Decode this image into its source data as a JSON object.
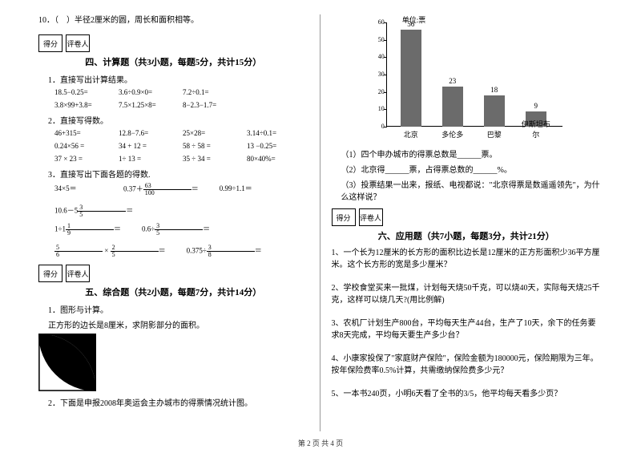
{
  "left": {
    "q10": "10．（　）半径2厘米的圆，周长和面积相等。",
    "score_labels": [
      "得分",
      "评卷人"
    ],
    "sec4_title": "四、计算题（共3小题，每题5分，共计15分）",
    "q4_1": "1．直接写出计算结果。",
    "r4_1a": [
      "18.5−0.25=",
      "3.6÷0.9×0=",
      "7.2÷0.1="
    ],
    "r4_1b": [
      "3.8×99+3.8=",
      "7.5×1.25×8=",
      "8−2.3−1.7="
    ],
    "q4_2": "2．直接写得数。",
    "r4_2a": [
      "46+315=",
      "12.8−7.6=",
      "25×28=",
      "3.14÷0.1="
    ],
    "r4_2b": [
      "0.24×56 =",
      "34 + 12 =",
      "58 ÷ 58 =",
      "13 −0.25="
    ],
    "r4_2c": [
      "37 × 23 =",
      "1÷ 13 =",
      "35 ÷ 34 =",
      "80×40%="
    ],
    "q4_3": "3．直接写出下面各题的得数.",
    "r4_3a_1": "34×5＝",
    "r4_3a_2a": "0.37＋",
    "r4_3a_2b": "＝",
    "r4_3a_3": "0.99÷1.1＝",
    "r4_3a_4a": "10.6－5",
    "r4_3a_4b": "＝",
    "r4_3b_1a": "1÷1",
    "r4_3b_1b": "＝",
    "r4_3b_2a": "0.6÷",
    "r4_3b_2b": "＝",
    "r4_3b_3b": "＝",
    "r4_3b_4a": "0.375÷",
    "r4_3b_4b": "＝",
    "sec5_title": "五、综合题（共2小题，每题7分，共计14分）",
    "q5_1a": "1．图形与计算。",
    "q5_1b": "正方形的边长是8厘米，求阴影部分的面积。",
    "q5_2": "2．下面是申报2008年奥运会主办城市的得票情况统计图。"
  },
  "right": {
    "chart": {
      "unit": "单位:票",
      "ymax": 60,
      "ystep": 10,
      "categories": [
        "北京",
        "多伦多",
        "巴黎",
        "伊斯坦布尔"
      ],
      "values": [
        56,
        23,
        18,
        9
      ],
      "bar_color": "#6b6b6b",
      "axis_color": "#000000"
    },
    "q_c1": "（1）四个申办城市的得票总数是______票。",
    "q_c2": "（2）北京得______票，占得票总数的______%。",
    "q_c3": "（3）投票结果一出来，报纸、电视都说：\"北京得票是数遥遥领先\"，为什么这样说？",
    "score_labels": [
      "得分",
      "评卷人"
    ],
    "sec6_title": "六、应用题（共7小题，每题3分，共计21分）",
    "q6_1": "1、一个长为12厘米的长方形的面积比边长是12厘米的正方形面积少36平方厘米。这个长方形的宽是多少厘米？",
    "q6_2": "2、学校食堂买来一批煤，计划每天烧50千克，可以烧40天，实际每天烧25千克，这样可以烧几天?(用比例解)",
    "q6_3": "3、农机厂计划生产800台，平均每天生产44台，生产了10天，余下的任务要求8天完成，平均每天要生产多少台？",
    "q6_4": "4、小康家投保了\"家庭财产保险\"，保险金额为180000元，保险期限为三年。按年保险费率0.5%计算，共需缴纳保险费多少元？",
    "q6_5": "5、一本书240页，小明6天看了全书的3/5，他平均每天看多少页？"
  },
  "footer": "第 2 页 共 4 页"
}
